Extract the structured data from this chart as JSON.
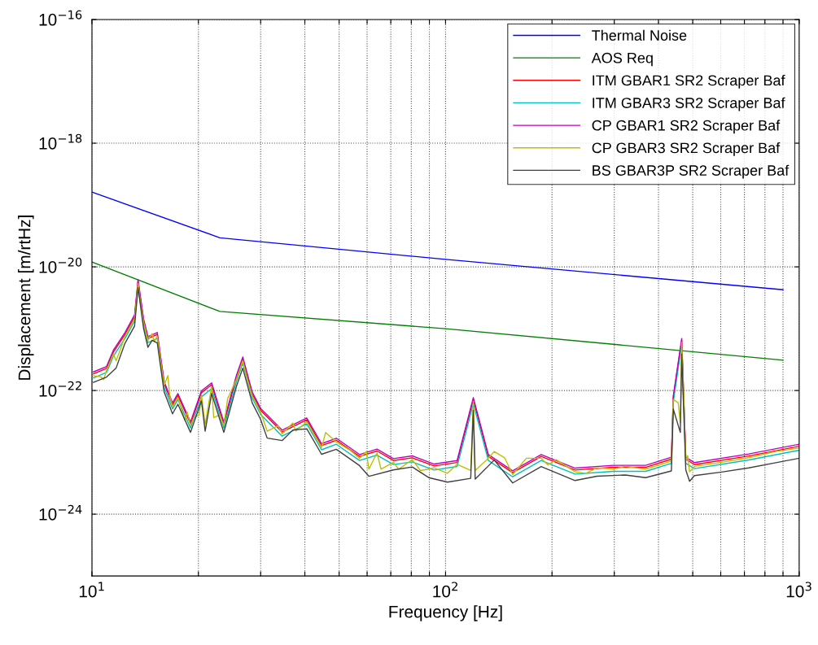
{
  "chart_data": {
    "type": "line",
    "xlabel": "Frequency [Hz]",
    "ylabel": "Displacement [m/rtHz]",
    "log": "xy",
    "grid": true,
    "legend": "top right",
    "marker": "none",
    "line_style": "solid",
    "xlim": [
      10,
      1000
    ],
    "ylim": [
      1e-25,
      1e-16
    ],
    "xticks": [
      {
        "value": 10,
        "label": "10$^{1}$"
      },
      {
        "value": 20,
        "label": null
      },
      {
        "value": 30,
        "label": null
      },
      {
        "value": 40,
        "label": null
      },
      {
        "value": 50,
        "label": null
      },
      {
        "value": 60,
        "label": null
      },
      {
        "value": 70,
        "label": null
      },
      {
        "value": 80,
        "label": null
      },
      {
        "value": 90,
        "label": null
      },
      {
        "value": 100,
        "label": "10$^{2}$"
      },
      {
        "value": 200,
        "label": null
      },
      {
        "value": 300,
        "label": null
      },
      {
        "value": 400,
        "label": null
      },
      {
        "value": 500,
        "label": null
      },
      {
        "value": 600,
        "label": null
      },
      {
        "value": 700,
        "label": null
      },
      {
        "value": 800,
        "label": null
      },
      {
        "value": 900,
        "label": null
      },
      {
        "value": 1000,
        "label": "10$^{3}$"
      }
    ],
    "yticks": [
      {
        "value": 1e-24,
        "label": "10$^{−24}$"
      },
      {
        "value": 1e-22,
        "label": "10$^{−22}$"
      },
      {
        "value": 1e-20,
        "label": "10$^{−20}$"
      },
      {
        "value": 1e-18,
        "label": "10$^{−18}$"
      },
      {
        "value": 1e-16,
        "label": "10$^{−16}$"
      }
    ],
    "x": [
      10.1,
      11.0,
      11.5,
      12.4,
      13.2,
      13.5,
      14.0,
      14.4,
      15.3,
      16.0,
      16.9,
      17.5,
      19.0,
      20.4,
      21.8,
      23.6,
      25.6,
      26.7,
      28.4,
      30.0,
      34.5,
      40.5,
      44.6,
      49.1,
      57.1,
      64.0,
      71.2,
      80.5,
      92.8,
      107.8,
      119.8,
      132.1,
      154.8,
      186.4,
      232.4,
      297.8,
      368.0,
      435.1,
      440.6,
      465.4,
      477.9,
      505.6,
      720.0,
      998
    ],
    "series": [
      {
        "name": "Thermal Noise",
        "color": "#0000ff",
        "x": [
          10,
          23,
          100,
          900
        ],
        "values": [
          1.62e-19,
          2.95e-20,
          1.32e-20,
          4.27e-21
        ]
      },
      {
        "name": "AOS Req",
        "color": "#008000",
        "x": [
          10,
          23,
          100,
          900
        ],
        "values": [
          1.2e-20,
          1.9e-21,
          1e-21,
          3.1e-22
        ]
      },
      {
        "name": "ITM GBAR1 SR2 Scraper Baf",
        "color": "#ff0000",
        "values": [
          1.86e-22,
          2.28e-22,
          4.18e-22,
          8.06e-22,
          1.55e-21,
          5.78e-21,
          1.34e-21,
          6.92e-22,
          8.06e-22,
          1.31e-22,
          5.84e-23,
          8.31e-23,
          2.88e-23,
          9.2e-23,
          1.24e-22,
          2.88e-23,
          1.61e-22,
          3.24e-22,
          8.74e-23,
          4.77e-23,
          2.13e-23,
          3.35e-23,
          1.28e-23,
          1.57e-23,
          8.58e-24,
          1.05e-23,
          7.37e-24,
          8.15e-24,
          6.01e-24,
          6.86e-24,
          7.15e-23,
          8.58e-24,
          4.68e-24,
          8.58e-24,
          5.17e-24,
          5.72e-24,
          5.72e-24,
          7.75e-24,
          7.66e-23,
          6.46e-22,
          7.75e-24,
          6.33e-24,
          8.74e-24,
          1.25e-23
        ]
      },
      {
        "name": "ITM GBAR3 SR2 Scraper Baf",
        "color": "#00bfbf",
        "values": [
          1.6e-22,
          1.96e-22,
          3.6e-22,
          6.93e-22,
          1.33e-21,
          4.97e-21,
          1.15e-21,
          5.95e-22,
          6.93e-22,
          1.12e-22,
          5.02e-23,
          7.15e-23,
          2.47e-23,
          7.91e-23,
          1.07e-22,
          2.47e-23,
          1.38e-22,
          2.79e-22,
          7.52e-23,
          4.1e-23,
          1.83e-23,
          2.88e-23,
          1.1e-23,
          1.35e-23,
          7.38e-24,
          9.02e-24,
          6.34e-24,
          7.01e-24,
          5.17e-24,
          5.9e-24,
          6.15e-23,
          7.38e-24,
          4.02e-24,
          7.38e-24,
          4.44e-24,
          4.92e-24,
          4.92e-24,
          6.66e-24,
          6.59e-23,
          5.56e-22,
          6.66e-24,
          5.45e-24,
          7.52e-24,
          1.08e-23
        ]
      },
      {
        "name": "CP GBAR1 SR2 Scraper Baf",
        "color": "#bf00bf",
        "values": [
          2e-22,
          2.45e-22,
          4.5e-22,
          8.66e-22,
          1.67e-21,
          6.21e-21,
          1.44e-21,
          7.44e-22,
          8.66e-22,
          1.4e-22,
          6.28e-23,
          8.94e-23,
          3.09e-23,
          9.89e-23,
          1.33e-22,
          3.09e-23,
          1.73e-22,
          3.48e-22,
          9.4e-23,
          5.13e-23,
          2.29e-23,
          3.6e-23,
          1.38e-23,
          1.69e-23,
          9.22e-24,
          1.13e-23,
          7.92e-24,
          8.76e-24,
          6.46e-24,
          7.37e-24,
          7.68e-23,
          9.22e-24,
          5.03e-24,
          9.22e-24,
          5.55e-24,
          6.15e-24,
          6.15e-24,
          8.33e-24,
          8.23e-23,
          6.95e-22,
          8.33e-24,
          6.81e-24,
          9.4e-24,
          1.35e-23
        ]
      },
      {
        "name": "CP GBAR3 SR2 Scraper Baf",
        "color": "#bfbf00",
        "x": [
          10.1,
          10.6,
          10.8,
          11.0,
          11.5,
          11.7,
          11.95,
          12.4,
          13.2,
          13.5,
          13.7,
          14.0,
          14.4,
          14.8,
          15.0,
          15.3,
          16.0,
          16.4,
          16.6,
          16.9,
          17.5,
          18.3,
          18.6,
          19.0,
          19.4,
          20.1,
          20.4,
          20.9,
          21.8,
          22.1,
          23.0,
          23.6,
          24.2,
          25.6,
          26.7,
          27.4,
          28.4,
          30.0,
          31.3,
          33.6,
          34.5,
          37.0,
          37.7,
          40.5,
          44.6,
          45.8,
          49.1,
          53.7,
          57.1,
          59.7,
          60.7,
          64.0,
          65.7,
          71.2,
          73.7,
          80.5,
          84.9,
          89.6,
          92.8,
          101.3,
          107.8,
          117.8,
          119.8,
          121.3,
          132.1,
          137.3,
          146.9,
          154.8,
          169.2,
          186.4,
          194.8,
          205.4,
          232.4,
          249.5,
          267.8,
          297.8,
          322.3,
          368.0,
          412.7,
          435.1,
          440.6,
          454.8,
          461.2,
          465.4,
          471.1,
          477.9,
          483.8,
          489.8,
          505.6,
          603.3,
          720.0,
          859.0,
          998
        ],
        "values": [
          1.74e-22,
          1.66e-22,
          1.5e-22,
          2.13e-22,
          3.91e-22,
          3.03e-22,
          4.11e-22,
          7.53e-22,
          1.45e-21,
          5.4e-21,
          2.8e-21,
          1.25e-21,
          6.47e-22,
          8.33e-22,
          6.15e-22,
          7.53e-22,
          1.22e-22,
          1.74e-22,
          8.17e-23,
          5.46e-23,
          7.77e-23,
          3.3e-23,
          4.46e-23,
          2.69e-23,
          3.64e-23,
          4.03e-23,
          8.6e-23,
          2.83e-23,
          1.16e-22,
          3.64e-23,
          4.03e-23,
          2.69e-23,
          7.38e-23,
          1.5e-22,
          3.03e-22,
          1.66e-22,
          8.17e-23,
          4.46e-23,
          2.2e-23,
          2.69e-23,
          1.99e-23,
          2.98e-23,
          2.2e-23,
          3.13e-23,
          1.2e-23,
          2.09e-23,
          1.47e-23,
          1.08e-23,
          8.02e-24,
          1.03e-23,
          5.35e-24,
          9.8e-24,
          5.35e-24,
          6.89e-24,
          5.35e-24,
          7.62e-24,
          5.08e-24,
          5.35e-24,
          5.62e-24,
          4.59e-24,
          6.41e-24,
          5.08e-24,
          6.68e-23,
          5.08e-24,
          8.02e-24,
          1.03e-23,
          8.17e-24,
          4.37e-24,
          8.02e-24,
          8.02e-24,
          6.22e-24,
          7.62e-24,
          4.83e-24,
          4.59e-24,
          5.62e-24,
          5.35e-24,
          5.92e-24,
          5.35e-24,
          6.55e-24,
          7.24e-24,
          7.16e-23,
          6.35e-23,
          2.98e-23,
          6.04e-22,
          1e-22,
          7.24e-24,
          8.85e-24,
          4.83e-24,
          5.92e-24,
          6.89e-24,
          8.17e-24,
          1.03e-23,
          1.17e-23
        ]
      },
      {
        "name": "BS GBAR3P SR2 Scraper Baf",
        "color": "#404040",
        "x": [
          10.1,
          11.0,
          11.7,
          12.4,
          13.2,
          13.5,
          14.0,
          14.4,
          14.8,
          15.3,
          16.0,
          16.9,
          17.5,
          19.0,
          20.4,
          20.9,
          21.8,
          23.6,
          25.6,
          26.7,
          28.4,
          30.0,
          31.3,
          34.5,
          37.0,
          40.5,
          44.6,
          49.1,
          57.1,
          60.7,
          71.2,
          80.5,
          89.6,
          101.3,
          117.8,
          119.8,
          121.3,
          137.3,
          154.8,
          186.4,
          232.4,
          267.8,
          322.3,
          368.0,
          435.1,
          440.6,
          461.2,
          465.4,
          477.9,
          489.8,
          505.6,
          603.3,
          720.0,
          859.0,
          998
        ],
        "values": [
          1.35e-22,
          1.65e-22,
          2.3e-22,
          5.8e-22,
          1.1e-21,
          4.6e-21,
          1e-21,
          5e-22,
          6.5e-22,
          5.9e-22,
          9.5e-23,
          4.2e-23,
          6e-23,
          2.1e-23,
          6.8e-23,
          2.2e-23,
          9e-23,
          2.1e-23,
          1.15e-22,
          2.3e-22,
          6.3e-23,
          3.4e-23,
          1.7e-23,
          1.55e-23,
          2.3e-23,
          2.4e-23,
          9.3e-24,
          1.12e-23,
          6.1e-24,
          4.1e-24,
          5.2e-24,
          5.8e-24,
          3.9e-24,
          3.3e-24,
          3.8e-24,
          4.8e-23,
          3.7e-24,
          7.5e-24,
          3.2e-24,
          5.9e-24,
          3.5e-24,
          4.1e-24,
          4.3e-24,
          3.9e-24,
          5e-24,
          5e-23,
          2.1e-23,
          3.9e-22,
          5.2e-24,
          3.4e-24,
          4.2e-24,
          4.8e-24,
          5.6e-24,
          6.8e-24,
          8e-24
        ]
      }
    ]
  }
}
